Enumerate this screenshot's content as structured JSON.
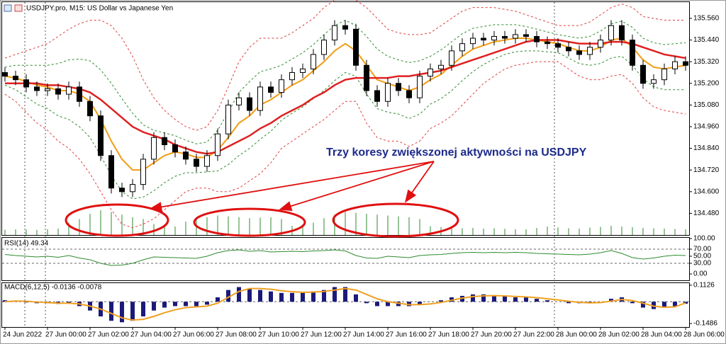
{
  "chart_data": [
    {
      "type": "candlestick",
      "title": "USDJPY.pro, M15:  US Dollar vs Japanese Yen",
      "annotation": "Trzy koresy zwiększonej aktywności na USDJPY",
      "categories": [
        "24 Jun 2022",
        null,
        null,
        null,
        "27 Jun 00:00",
        null,
        null,
        null,
        "27 Jun 02:00",
        null,
        null,
        null,
        "27 Jun 04:00",
        null,
        null,
        null,
        "27 Jun 06:00",
        null,
        null,
        null,
        "27 Jun 08:00",
        null,
        null,
        null,
        "27 Jun 10:00",
        null,
        null,
        null,
        "27 Jun 12:00",
        null,
        null,
        null,
        "27 Jun 14:00",
        null,
        null,
        null,
        "27 Jun 16:00",
        null,
        null,
        null,
        "27 Jun 18:00",
        null,
        null,
        null,
        "27 Jun 20:00",
        null,
        null,
        null,
        "27 Jun 22:00",
        null,
        null,
        null,
        "28 Jun 00:00",
        null,
        null,
        null,
        "28 Jun 02:00",
        null,
        null,
        null,
        "28 Jun 04:00",
        null,
        null,
        null,
        "28 Jun 06:00"
      ],
      "open": [
        135.26,
        135.24,
        135.22,
        135.18,
        135.16,
        135.17,
        135.14,
        135.18,
        135.1,
        135.02,
        134.8,
        134.62,
        134.6,
        134.64,
        134.78,
        134.9,
        134.86,
        134.82,
        134.78,
        134.74,
        134.8,
        134.92,
        135.08,
        135.12,
        135.05,
        135.18,
        135.15,
        135.22,
        135.26,
        135.28,
        135.36,
        135.44,
        135.52,
        135.5,
        135.3,
        135.16,
        135.1,
        135.2,
        135.16,
        135.12,
        135.24,
        135.28,
        135.3,
        135.38,
        135.42,
        135.45,
        135.44,
        135.46,
        135.45,
        135.47,
        135.46,
        135.43,
        135.42,
        135.4,
        135.38,
        135.36,
        135.4,
        135.44,
        135.52,
        135.44,
        135.3,
        135.2,
        135.22,
        135.28,
        135.32
      ],
      "high": [
        135.29,
        135.27,
        135.25,
        135.21,
        135.2,
        135.2,
        135.21,
        135.21,
        135.13,
        135.05,
        134.83,
        134.65,
        134.67,
        134.81,
        134.93,
        134.93,
        134.89,
        134.85,
        134.81,
        134.83,
        134.95,
        135.11,
        135.15,
        135.15,
        135.21,
        135.21,
        135.25,
        135.29,
        135.31,
        135.39,
        135.47,
        135.55,
        135.55,
        135.53,
        135.33,
        135.19,
        135.23,
        135.23,
        135.19,
        135.27,
        135.31,
        135.33,
        135.41,
        135.45,
        135.48,
        135.48,
        135.49,
        135.49,
        135.5,
        135.5,
        135.49,
        135.46,
        135.45,
        135.43,
        135.41,
        135.43,
        135.47,
        135.55,
        135.55,
        135.47,
        135.33,
        135.25,
        135.31,
        135.35,
        135.35
      ],
      "low": [
        135.21,
        135.19,
        135.15,
        135.13,
        135.13,
        135.11,
        135.11,
        135.07,
        134.99,
        134.77,
        134.59,
        134.57,
        134.57,
        134.61,
        134.75,
        134.83,
        134.79,
        134.75,
        134.71,
        134.71,
        134.77,
        134.89,
        135.05,
        135.02,
        135.02,
        135.12,
        135.12,
        135.19,
        135.23,
        135.25,
        135.33,
        135.41,
        135.47,
        135.27,
        135.13,
        135.07,
        135.07,
        135.13,
        135.09,
        135.09,
        135.21,
        135.25,
        135.27,
        135.35,
        135.39,
        135.41,
        135.41,
        135.42,
        135.42,
        135.43,
        135.4,
        135.39,
        135.37,
        135.35,
        135.33,
        135.33,
        135.37,
        135.41,
        135.41,
        135.27,
        135.17,
        135.17,
        135.19,
        135.25,
        135.27
      ],
      "close": [
        135.24,
        135.22,
        135.18,
        135.16,
        135.17,
        135.14,
        135.18,
        135.1,
        135.02,
        134.8,
        134.62,
        134.6,
        134.64,
        134.78,
        134.9,
        134.86,
        134.82,
        134.78,
        134.74,
        134.8,
        134.92,
        135.08,
        135.12,
        135.05,
        135.18,
        135.15,
        135.22,
        135.26,
        135.28,
        135.36,
        135.44,
        135.52,
        135.5,
        135.3,
        135.16,
        135.1,
        135.2,
        135.16,
        135.12,
        135.24,
        135.28,
        135.3,
        135.38,
        135.42,
        135.45,
        135.44,
        135.46,
        135.45,
        135.47,
        135.46,
        135.43,
        135.42,
        135.4,
        135.38,
        135.36,
        135.4,
        135.44,
        135.52,
        135.44,
        135.3,
        135.2,
        135.22,
        135.28,
        135.32,
        135.3
      ],
      "series": [
        {
          "color": "#2e8b2e",
          "dash": true,
          "width": 1,
          "values": [
            135.29,
            135.3,
            135.3,
            135.3,
            135.3,
            135.31,
            135.33,
            135.335,
            135.325,
            135.275,
            135.2,
            135.115,
            135.035,
            134.97,
            134.94,
            134.925,
            134.91,
            134.885,
            134.865,
            134.875,
            134.94,
            135.04,
            135.15,
            135.21,
            135.265,
            135.28,
            135.3,
            135.335,
            135.37,
            135.415,
            135.47,
            135.52,
            135.55,
            135.52,
            135.46,
            135.39,
            135.35,
            135.33,
            135.315,
            135.325,
            135.35,
            135.385,
            135.43,
            135.475,
            135.505,
            135.515,
            135.525,
            135.525,
            135.525,
            135.515,
            135.5,
            135.485,
            135.47,
            135.46,
            135.45,
            135.46,
            135.49,
            135.53,
            135.545,
            135.51,
            135.45,
            135.425,
            135.415,
            135.42,
            135.425
          ]
        },
        {
          "color": "#2e8b2e",
          "dash": true,
          "width": 1,
          "values": [
            135.19,
            135.165,
            135.125,
            135.085,
            135.06,
            135.02,
            135.0,
            134.96,
            134.9,
            134.8,
            134.69,
            134.6,
            134.56,
            134.57,
            134.605,
            134.65,
            134.685,
            134.705,
            134.705,
            134.71,
            134.715,
            134.75,
            134.8,
            134.84,
            134.89,
            134.935,
            134.995,
            135.035,
            135.07,
            135.115,
            135.16,
            135.215,
            135.26,
            135.24,
            135.14,
            135.06,
            135.04,
            135.03,
            135.005,
            135.03,
            135.085,
            135.115,
            135.16,
            135.215,
            135.265,
            135.305,
            135.335,
            135.36,
            135.375,
            135.38,
            135.38,
            135.375,
            135.37,
            135.34,
            135.31,
            135.3,
            135.31,
            135.34,
            135.35,
            135.3,
            135.225,
            135.18,
            135.165,
            135.165,
            135.165
          ]
        },
        {
          "color": "#e04040",
          "dash": true,
          "width": 1,
          "values": [
            135.34,
            135.36,
            135.38,
            135.4,
            135.42,
            135.46,
            135.5,
            135.53,
            135.55,
            135.55,
            135.52,
            135.45,
            135.35,
            135.22,
            135.12,
            135.05,
            135.0,
            134.96,
            134.94,
            134.96,
            135.05,
            135.18,
            135.32,
            135.4,
            135.45,
            135.45,
            135.45,
            135.48,
            135.52,
            135.56,
            135.62,
            135.66,
            135.68,
            135.66,
            135.62,
            135.56,
            135.5,
            135.48,
            135.47,
            135.47,
            135.48,
            135.52,
            135.56,
            135.6,
            135.62,
            135.62,
            135.62,
            135.61,
            135.6,
            135.58,
            135.56,
            135.54,
            135.52,
            135.52,
            135.52,
            135.54,
            135.58,
            135.62,
            135.64,
            135.62,
            135.57,
            135.56,
            135.55,
            135.55,
            135.55
          ]
        },
        {
          "color": "#e04040",
          "dash": true,
          "width": 1,
          "values": [
            135.14,
            135.1,
            135.04,
            134.98,
            134.94,
            134.88,
            134.84,
            134.78,
            134.7,
            134.6,
            134.5,
            134.42,
            134.4,
            134.42,
            134.45,
            134.5,
            134.55,
            134.6,
            134.62,
            134.62,
            134.6,
            134.6,
            134.62,
            134.66,
            134.7,
            134.76,
            134.84,
            134.88,
            134.92,
            134.96,
            135.0,
            135.05,
            135.1,
            135.1,
            134.98,
            134.9,
            134.88,
            134.88,
            134.85,
            134.88,
            134.95,
            134.98,
            135.02,
            135.08,
            135.14,
            135.2,
            135.24,
            135.28,
            135.3,
            135.31,
            135.32,
            135.32,
            135.32,
            135.28,
            135.24,
            135.22,
            135.22,
            135.24,
            135.25,
            135.2,
            135.12,
            135.07,
            135.05,
            135.04,
            135.03
          ]
        },
        {
          "color": "#f39c12",
          "dash": false,
          "width": 2,
          "values": [
            135.24,
            135.23,
            135.21,
            135.19,
            135.18,
            135.16,
            135.16,
            135.14,
            135.1,
            135.0,
            134.88,
            134.78,
            134.72,
            134.72,
            134.76,
            134.8,
            134.82,
            134.81,
            134.79,
            134.79,
            134.83,
            134.9,
            134.98,
            135.02,
            135.08,
            135.11,
            135.15,
            135.19,
            135.22,
            135.27,
            135.32,
            135.38,
            135.42,
            135.38,
            135.3,
            135.22,
            135.2,
            135.18,
            135.16,
            135.18,
            135.22,
            135.25,
            135.3,
            135.35,
            135.39,
            135.41,
            135.43,
            135.44,
            135.45,
            135.45,
            135.44,
            135.43,
            135.42,
            135.4,
            135.38,
            135.38,
            135.4,
            135.44,
            135.45,
            135.4,
            135.33,
            135.29,
            135.28,
            135.29,
            135.3
          ]
        },
        {
          "color": "#e02020",
          "dash": false,
          "width": 2.5,
          "values": [
            135.2,
            135.2,
            135.2,
            135.2,
            135.19,
            135.19,
            135.18,
            135.17,
            135.15,
            135.11,
            135.06,
            135.01,
            134.96,
            134.93,
            134.91,
            134.89,
            134.86,
            134.84,
            134.82,
            134.81,
            134.82,
            134.85,
            134.88,
            134.91,
            134.95,
            134.98,
            135.02,
            135.05,
            135.08,
            135.12,
            135.15,
            135.19,
            135.22,
            135.23,
            135.23,
            135.23,
            135.23,
            135.24,
            135.24,
            135.25,
            135.26,
            135.27,
            135.29,
            135.31,
            135.33,
            135.35,
            135.37,
            135.39,
            135.41,
            135.43,
            135.44,
            135.44,
            135.44,
            135.43,
            135.42,
            135.42,
            135.42,
            135.43,
            135.43,
            135.42,
            135.4,
            135.38,
            135.36,
            135.35,
            135.34
          ]
        }
      ],
      "volume_color": "#2e8b2e",
      "volumes": [
        300,
        320,
        310,
        290,
        330,
        360,
        700,
        900,
        1200,
        1400,
        1300,
        1150,
        1000,
        900,
        620,
        500,
        480,
        760,
        980,
        1000,
        1100,
        1050,
        1000,
        950,
        980,
        1000,
        900,
        520,
        600,
        700,
        950,
        1150,
        1300,
        1250,
        1200,
        1150,
        1100,
        1050,
        1000,
        900,
        500,
        450,
        420,
        380,
        400,
        360,
        380,
        350,
        330,
        320,
        400,
        480,
        430,
        380,
        360,
        420,
        460,
        520,
        480,
        440,
        400,
        380,
        360,
        340,
        320
      ],
      "ylim": [
        134.36,
        135.65
      ],
      "yticks": [
        {
          "value": 135.56,
          "label": "135.560"
        },
        {
          "value": 135.44,
          "label": "135.440"
        },
        {
          "value": 135.32,
          "label": "135.320"
        },
        {
          "value": 135.2,
          "label": "135.200"
        },
        {
          "value": 135.08,
          "label": "135.080"
        },
        {
          "value": 134.96,
          "label": "134.960"
        },
        {
          "value": 134.84,
          "label": "134.840"
        },
        {
          "value": 134.72,
          "label": "134.720"
        },
        {
          "value": 134.6,
          "label": "134.600"
        },
        {
          "value": 134.48,
          "label": "134.480"
        }
      ]
    },
    {
      "type": "line",
      "label": "RSI(14) 49.34",
      "color": "#2e8b2e",
      "values": [
        55,
        52,
        50,
        48,
        50,
        47,
        52,
        45,
        40,
        30,
        24,
        25,
        30,
        40,
        48,
        47,
        46,
        45,
        44,
        50,
        60,
        66,
        68,
        64,
        66,
        62,
        63,
        64,
        63,
        65,
        66,
        68,
        65,
        52,
        45,
        44,
        50,
        48,
        46,
        52,
        54,
        55,
        58,
        60,
        61,
        60,
        61,
        60,
        61,
        60,
        58,
        57,
        56,
        55,
        54,
        56,
        60,
        66,
        58,
        46,
        42,
        45,
        50,
        53,
        52
      ],
      "levels": [
        70,
        30
      ],
      "ylim": [
        -18,
        102
      ],
      "yticks": [
        {
          "value": 100,
          "label": "100.00"
        },
        {
          "value": 70,
          "label": "70.00"
        },
        {
          "value": 50,
          "label": "50.00"
        },
        {
          "value": 30,
          "label": "30.00"
        },
        {
          "value": 0,
          "label": "0.00"
        }
      ]
    },
    {
      "type": "bar",
      "label": "MACD(6,12,5) -0.0136 -0.0078",
      "color": "#1a1a7a",
      "signal_color": "#f0a020",
      "values": [
        0.01,
        0.005,
        -0.005,
        -0.01,
        -0.01,
        -0.015,
        -0.01,
        -0.03,
        -0.06,
        -0.1,
        -0.13,
        -0.14,
        -0.13,
        -0.1,
        -0.06,
        -0.04,
        -0.03,
        -0.03,
        -0.03,
        -0.02,
        0.03,
        0.08,
        0.1,
        0.09,
        0.08,
        0.07,
        0.06,
        0.06,
        0.06,
        0.07,
        0.08,
        0.1,
        0.1,
        0.05,
        -0.01,
        -0.03,
        -0.03,
        -0.03,
        -0.03,
        -0.02,
        0.0,
        0.01,
        0.03,
        0.04,
        0.05,
        0.05,
        0.04,
        0.04,
        0.03,
        0.03,
        0.02,
        0.01,
        0.0,
        -0.01,
        -0.01,
        -0.01,
        0.0,
        0.02,
        0.03,
        -0.01,
        -0.04,
        -0.05,
        -0.04,
        -0.03,
        -0.014
      ],
      "signal": [
        0.0,
        0.005,
        0.003,
        -0.002,
        -0.006,
        -0.01,
        -0.01,
        -0.015,
        -0.03,
        -0.05,
        -0.08,
        -0.11,
        -0.125,
        -0.12,
        -0.1,
        -0.075,
        -0.055,
        -0.04,
        -0.035,
        -0.03,
        -0.01,
        0.03,
        0.07,
        0.09,
        0.09,
        0.085,
        0.075,
        0.068,
        0.064,
        0.066,
        0.07,
        0.08,
        0.09,
        0.08,
        0.05,
        0.02,
        0.0,
        -0.01,
        -0.02,
        -0.02,
        -0.015,
        -0.005,
        0.01,
        0.025,
        0.035,
        0.04,
        0.042,
        0.04,
        0.036,
        0.033,
        0.028,
        0.02,
        0.012,
        0.003,
        -0.004,
        -0.008,
        -0.006,
        0.004,
        0.015,
        0.008,
        -0.01,
        -0.03,
        -0.038,
        -0.035,
        -0.008
      ],
      "ylim": [
        -0.1724,
        0.1268
      ],
      "yticks": [
        0.1126,
        -0.1486
      ]
    }
  ]
}
